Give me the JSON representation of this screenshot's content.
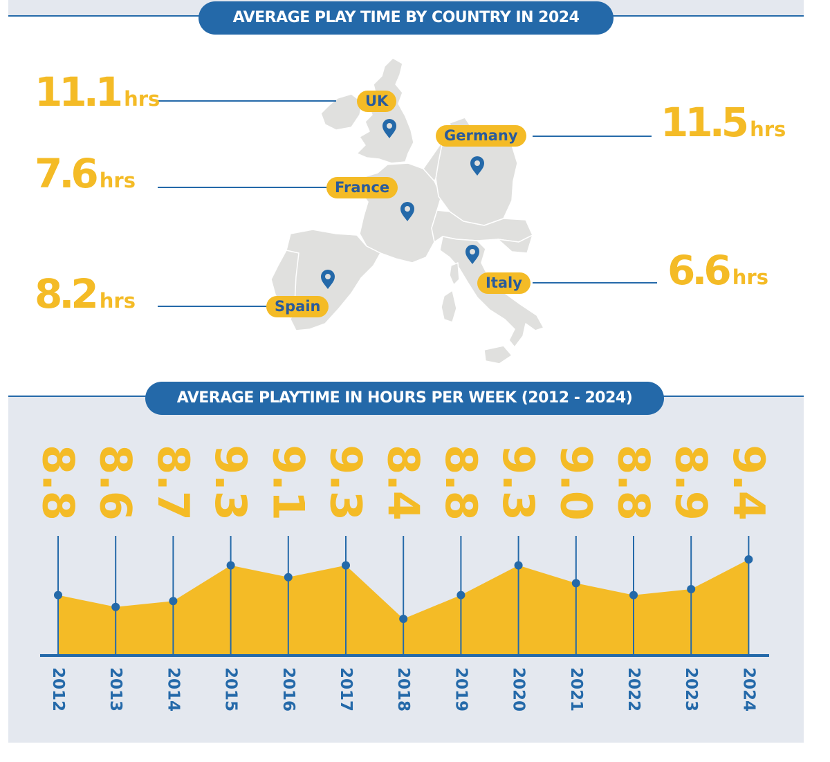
{
  "map_section": {
    "title": "AVERAGE PLAY TIME BY COUNTRY IN 2024",
    "unit": "hrs",
    "countries": [
      {
        "name": "UK",
        "value": "11.1"
      },
      {
        "name": "France",
        "value": "7.6"
      },
      {
        "name": "Spain",
        "value": "8.2"
      },
      {
        "name": "Germany",
        "value": "11.5"
      },
      {
        "name": "Italy",
        "value": "6.6"
      }
    ]
  },
  "chart_section": {
    "title": "AVERAGE PLAYTIME IN HOURS PER WEEK (2012 - 2024)"
  },
  "colors": {
    "accent_blue": "#2469a9",
    "accent_yellow": "#f4bb26",
    "map_gray": "#e0e0de",
    "panel_gray": "#e4e8ef"
  },
  "chart_data": {
    "type": "area",
    "title": "AVERAGE PLAYTIME IN HOURS PER WEEK (2012 - 2024)",
    "categories": [
      "2012",
      "2013",
      "2014",
      "2015",
      "2016",
      "2017",
      "2018",
      "2019",
      "2020",
      "2021",
      "2022",
      "2023",
      "2024"
    ],
    "values": [
      8.8,
      8.6,
      8.7,
      9.3,
      9.1,
      9.3,
      8.4,
      8.8,
      9.3,
      9.0,
      8.8,
      8.9,
      9.4
    ],
    "value_labels": [
      "8.8",
      "8.6",
      "8.7",
      "9.3",
      "9.1",
      "9.3",
      "8.4",
      "8.8",
      "9.3",
      "9.0",
      "8.8",
      "8.9",
      "9.4"
    ],
    "xlabel": "",
    "ylabel": "",
    "grid": false,
    "legend": "none"
  }
}
